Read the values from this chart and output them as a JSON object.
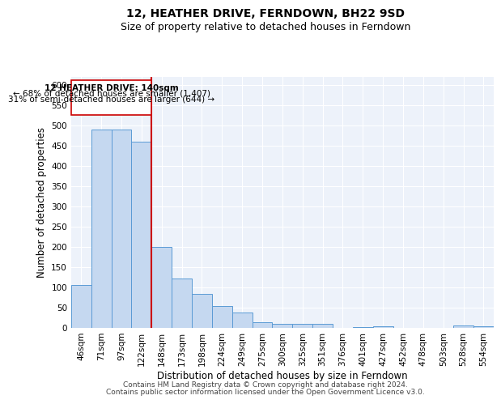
{
  "title": "12, HEATHER DRIVE, FERNDOWN, BH22 9SD",
  "subtitle": "Size of property relative to detached houses in Ferndown",
  "xlabel": "Distribution of detached houses by size in Ferndown",
  "ylabel": "Number of detached properties",
  "footer_line1": "Contains HM Land Registry data © Crown copyright and database right 2024.",
  "footer_line2": "Contains public sector information licensed under the Open Government Licence v3.0.",
  "property_label": "12 HEATHER DRIVE: 140sqm",
  "annotation_line2": "← 68% of detached houses are smaller (1,407)",
  "annotation_line3": "31% of semi-detached houses are larger (644) →",
  "categories": [
    "46sqm",
    "71sqm",
    "97sqm",
    "122sqm",
    "148sqm",
    "173sqm",
    "198sqm",
    "224sqm",
    "249sqm",
    "275sqm",
    "300sqm",
    "325sqm",
    "351sqm",
    "376sqm",
    "401sqm",
    "427sqm",
    "452sqm",
    "478sqm",
    "503sqm",
    "528sqm",
    "554sqm"
  ],
  "values": [
    107,
    490,
    490,
    460,
    200,
    122,
    84,
    55,
    38,
    15,
    10,
    11,
    10,
    0,
    2,
    5,
    0,
    0,
    0,
    6,
    5
  ],
  "bar_color": "#c5d8f0",
  "bar_edge_color": "#5b9bd5",
  "red_line_color": "#cc0000",
  "background_color": "#edf2fa",
  "ylim": [
    0,
    620
  ],
  "yticks": [
    0,
    50,
    100,
    150,
    200,
    250,
    300,
    350,
    400,
    450,
    500,
    550,
    600
  ],
  "title_fontsize": 10,
  "subtitle_fontsize": 9,
  "axis_label_fontsize": 8.5,
  "tick_fontsize": 7.5,
  "annotation_fontsize": 7.5,
  "footer_fontsize": 6.5
}
